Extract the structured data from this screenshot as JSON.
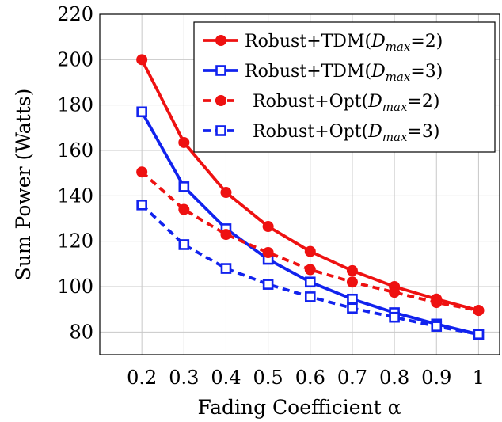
{
  "chart_data": {
    "type": "line",
    "title": "",
    "xlabel": "Fading Coefficient α",
    "ylabel": "Sum Power (Watts)",
    "x": [
      0.2,
      0.3,
      0.4,
      0.5,
      0.6,
      0.7,
      0.8,
      0.9,
      1
    ],
    "x_tick_labels": [
      "0.2",
      "0.3",
      "0.4",
      "0.5",
      "0.6",
      "0.7",
      "0.8",
      "0.9",
      "1"
    ],
    "xlim": [
      0.1,
      1.05
    ],
    "ylim": [
      70,
      220
    ],
    "y_ticks": [
      80,
      100,
      120,
      140,
      160,
      180,
      200,
      220
    ],
    "y_tick_labels": [
      "80",
      "100",
      "120",
      "140",
      "160",
      "180",
      "200",
      "220"
    ],
    "grid": true,
    "legend_position": "top-right",
    "series": [
      {
        "name": "Robust+TDM(Dmax=2)",
        "legend_prefix": "Robust+TDM(",
        "legend_var": "D",
        "legend_sub": "max",
        "legend_suffix": "=2)",
        "color": "#ee1111",
        "line_style": "solid",
        "marker": "circle",
        "values": [
          200,
          163.5,
          141.5,
          126.5,
          115.5,
          107,
          100,
          94.5,
          89.5
        ]
      },
      {
        "name": "Robust+TDM(Dmax=3)",
        "legend_prefix": "Robust+TDM(",
        "legend_var": "D",
        "legend_sub": "max",
        "legend_suffix": "=3)",
        "color": "#1122ee",
        "line_style": "solid",
        "marker": "square",
        "values": [
          177,
          144,
          125.5,
          112,
          102,
          94.5,
          88.5,
          83.5,
          79
        ]
      },
      {
        "name": "Robust+Opt(Dmax=2)",
        "legend_prefix": "Robust+Opt(",
        "legend_var": "D",
        "legend_sub": "max",
        "legend_suffix": "=2)",
        "color": "#ee1111",
        "line_style": "dashed",
        "marker": "circle",
        "values": [
          150.5,
          134,
          123,
          115,
          107.5,
          102,
          97.5,
          93,
          89.5
        ]
      },
      {
        "name": "Robust+Opt(Dmax=3)",
        "legend_prefix": "Robust+Opt(",
        "legend_var": "D",
        "legend_sub": "max",
        "legend_suffix": "=3)",
        "color": "#1122ee",
        "line_style": "dashed",
        "marker": "square",
        "values": [
          136,
          118.5,
          108,
          101,
          95.5,
          90.5,
          86.5,
          82.5,
          79
        ]
      }
    ]
  }
}
